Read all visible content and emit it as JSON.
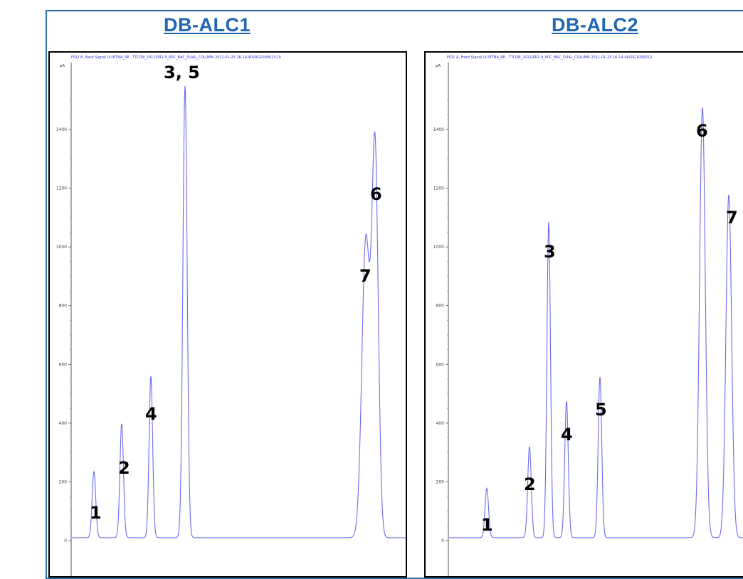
{
  "titles": {
    "left": "DB-ALC1",
    "right": "DB-ALC2"
  },
  "colors": {
    "trace": "#6b6bf0",
    "title": "#1f66b3",
    "frame": "#2e6ea8"
  },
  "chart_data": [
    {
      "type": "line",
      "title": "DB-ALC1",
      "signal_header": "FID2 B, Back Signal (X:\\ETNA_RE...TTCON_2011\\PR1-9_60C_BAC_DUAL_COLUMN 2011-01-25 16-14-40\\SIG1000013.D)",
      "ylabel": "pA",
      "ylim": [
        -50,
        1560
      ],
      "yticks": [
        0,
        200,
        400,
        600,
        800,
        1000,
        1200,
        1400
      ],
      "baseline": 10,
      "peaks": [
        {
          "label": "1",
          "height": 235,
          "width": 2.5
        },
        {
          "label": "2",
          "height": 398,
          "width": 2.5
        },
        {
          "label": "4",
          "height": 560,
          "width": 2.5
        },
        {
          "label": "3, 5",
          "height": 1548,
          "width": 3.0
        },
        {
          "label": "7",
          "height": 1020,
          "width": 5.5
        },
        {
          "label": "6",
          "height": 1325,
          "width": 4.5
        }
      ]
    },
    {
      "type": "line",
      "title": "DB-ALC2",
      "signal_header": "FID1 A, Front Signal (X:\\ETNA_RE...TTCON_2011\\PR1-9_60C_BAC_DUAL_COLUMN 2011-01-25 16-14-40\\SIG1000013",
      "ylabel": "pA",
      "ylim": [
        -50,
        1560
      ],
      "yticks": [
        0,
        200,
        400,
        600,
        800,
        1000,
        1200,
        1400
      ],
      "baseline": 10,
      "peaks": [
        {
          "label": "1",
          "height": 178,
          "width": 2.5
        },
        {
          "label": "2",
          "height": 320,
          "width": 2.5
        },
        {
          "label": "3",
          "height": 1085,
          "width": 2.5
        },
        {
          "label": "4",
          "height": 475,
          "width": 2.5
        },
        {
          "label": "5",
          "height": 557,
          "width": 2.5
        },
        {
          "label": "6",
          "height": 1475,
          "width": 4.0
        },
        {
          "label": "7",
          "height": 1178,
          "width": 4.0
        }
      ]
    }
  ]
}
